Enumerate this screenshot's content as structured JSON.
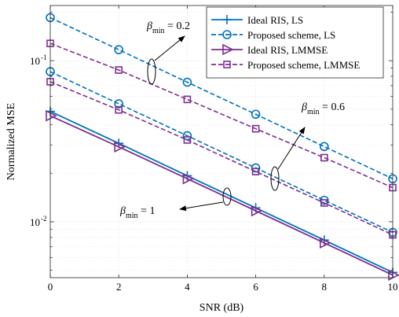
{
  "chart_data": {
    "type": "line",
    "title": "",
    "xlabel": "SNR (dB)",
    "ylabel": "Normalized MSE",
    "xlim": [
      0,
      10
    ],
    "ylim": [
      0.0045,
      0.22
    ],
    "yscale": "log",
    "grid": true,
    "legend_position": "top-right",
    "x": [
      0,
      2,
      4,
      6,
      8,
      10
    ],
    "x_ticks": [
      "0",
      "2",
      "4",
      "6",
      "8",
      "10"
    ],
    "y_ticks": [
      {
        "value": 0.01,
        "label": "10",
        "exp": "-2"
      },
      {
        "value": 0.1,
        "label": "10",
        "exp": "-1"
      }
    ],
    "series": [
      {
        "name": "Ideal RIS, LS",
        "color": "#0072BD",
        "dash": "solid",
        "marker": "plus",
        "group": "β=1",
        "values": [
          0.0485,
          0.0307,
          0.0193,
          0.0122,
          0.0077,
          0.00485
        ]
      },
      {
        "name": "Ideal RIS, LMMSE",
        "color": "#7E2F8E",
        "dash": "solid",
        "marker": "triangle-right",
        "group": "β=1",
        "values": [
          0.0455,
          0.0292,
          0.0185,
          0.0117,
          0.0074,
          0.00467
        ]
      },
      {
        "name": "Proposed scheme, LS",
        "color": "#0072BD",
        "dash": "dashed",
        "marker": "circle",
        "group": "β=0.2",
        "values": [
          0.185,
          0.117,
          0.0735,
          0.0465,
          0.0293,
          0.0185
        ]
      },
      {
        "name": "Proposed scheme, LMMSE",
        "color": "#7E2F8E",
        "dash": "dashed",
        "marker": "square",
        "group": "β=0.2",
        "values": [
          0.128,
          0.0875,
          0.0575,
          0.0378,
          0.025,
          0.0163
        ]
      },
      {
        "name": "Proposed scheme, LS",
        "color": "#0072BD",
        "dash": "dashed",
        "marker": "circle",
        "group": "β=0.6",
        "values": [
          0.0855,
          0.054,
          0.0342,
          0.0216,
          0.0136,
          0.0086
        ]
      },
      {
        "name": "Proposed scheme, LMMSE",
        "color": "#7E2F8E",
        "dash": "dashed",
        "marker": "square",
        "group": "β=0.6",
        "values": [
          0.074,
          0.0495,
          0.0322,
          0.0205,
          0.0131,
          0.0083
        ]
      }
    ],
    "legend": [
      {
        "label": "Ideal RIS, LS",
        "color": "#0072BD",
        "dash": "solid",
        "marker": "plus"
      },
      {
        "label": "Proposed scheme, LS",
        "color": "#0072BD",
        "dash": "dashed",
        "marker": "circle"
      },
      {
        "label": "Ideal RIS, LMMSE",
        "color": "#7E2F8E",
        "dash": "solid",
        "marker": "triangle-right"
      },
      {
        "label": "Proposed scheme, LMMSE",
        "color": "#7E2F8E",
        "dash": "dashed",
        "marker": "square"
      }
    ],
    "annotations": [
      {
        "symbol": "β",
        "sub": "min",
        "text": " = 0.2"
      },
      {
        "symbol": "β",
        "sub": "min",
        "text": " = 0.6"
      },
      {
        "symbol": "β",
        "sub": "min",
        "text": " = 1"
      }
    ]
  }
}
